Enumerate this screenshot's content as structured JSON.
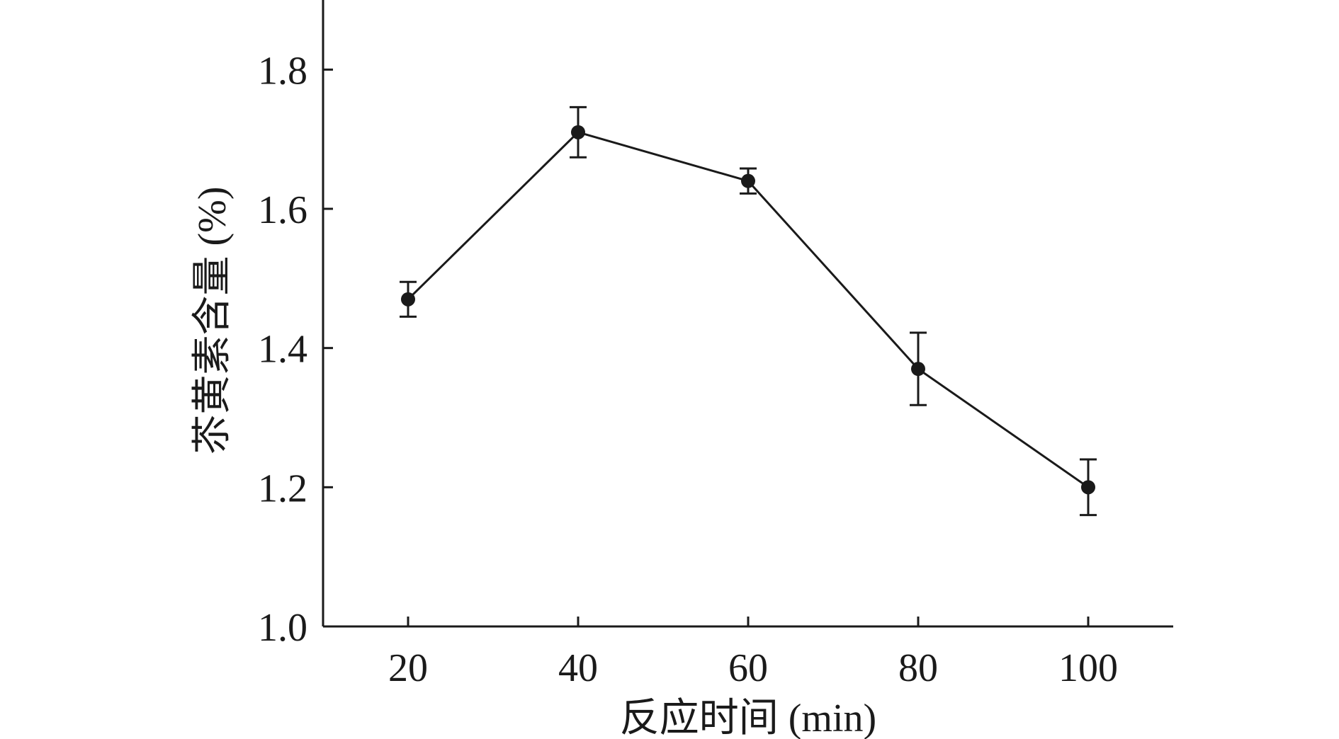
{
  "chart_data": {
    "type": "line",
    "xlabel": "反应时间 (min)",
    "ylabel": "苶黄素含量 (%)",
    "x": [
      20,
      40,
      60,
      80,
      100
    ],
    "series": [
      {
        "values": [
          1.47,
          1.71,
          1.64,
          1.37,
          1.2
        ],
        "error": [
          0.025,
          0.036,
          0.018,
          0.052,
          0.04
        ]
      }
    ],
    "xlim": [
      10,
      110
    ],
    "ylim": [
      1.0,
      1.9
    ],
    "xticks": [
      20,
      40,
      60,
      80,
      100
    ],
    "xtick_labels": [
      "20",
      "40",
      "60",
      "80",
      "100"
    ],
    "yticks": [
      1.0,
      1.2,
      1.4,
      1.6,
      1.8
    ],
    "ytick_labels": [
      "1.0",
      "1.2",
      "1.4",
      "1.6",
      "1.8"
    ],
    "grid": false,
    "legend": "none",
    "colors": {
      "line": "#1a1a1a",
      "marker": "#1a1a1a"
    }
  }
}
